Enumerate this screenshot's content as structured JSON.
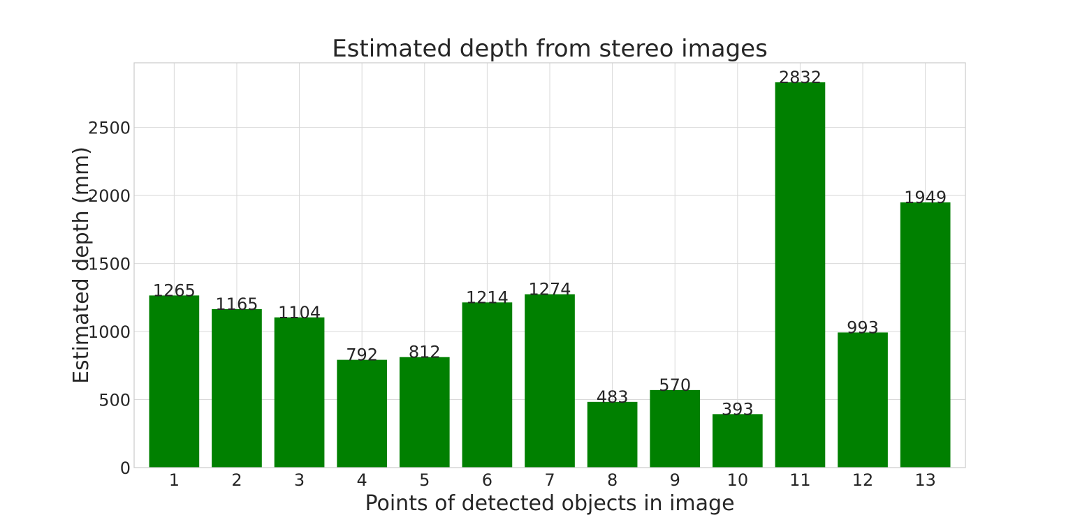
{
  "chart_data": {
    "type": "bar",
    "title": "Estimated depth from stereo images",
    "xlabel": "Points of detected objects in image",
    "ylabel": "Estimated depth (mm)",
    "categories": [
      "1",
      "2",
      "3",
      "4",
      "5",
      "6",
      "7",
      "8",
      "9",
      "10",
      "11",
      "12",
      "13"
    ],
    "values": [
      1265,
      1165,
      1104,
      792,
      812,
      1214,
      1274,
      483,
      570,
      393,
      2832,
      993,
      1949
    ],
    "data_labels": [
      "1265",
      "1165",
      "1104",
      "792",
      "812",
      "1214",
      "1274",
      "483",
      "570",
      "393",
      "2832",
      "993",
      "1949"
    ],
    "ylim": [
      0,
      2975
    ],
    "yticks": [
      0,
      500,
      1000,
      1500,
      2000,
      2500
    ],
    "ytick_labels": [
      "0",
      "500",
      "1000",
      "1500",
      "2000",
      "2500"
    ],
    "grid": true,
    "legend": "none",
    "colors": {
      "bar": "#008000",
      "grid": "#d9d9d9",
      "axes_edge": "#cccccc",
      "text": "#262626"
    }
  }
}
